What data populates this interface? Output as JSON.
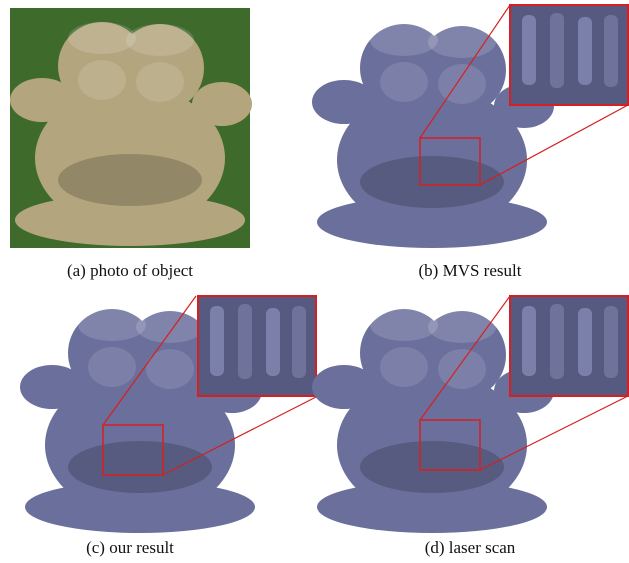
{
  "captions": [
    "(a) photo of object",
    "(b) MVS result",
    "(c) our result",
    "(d) laser scan"
  ]
}
